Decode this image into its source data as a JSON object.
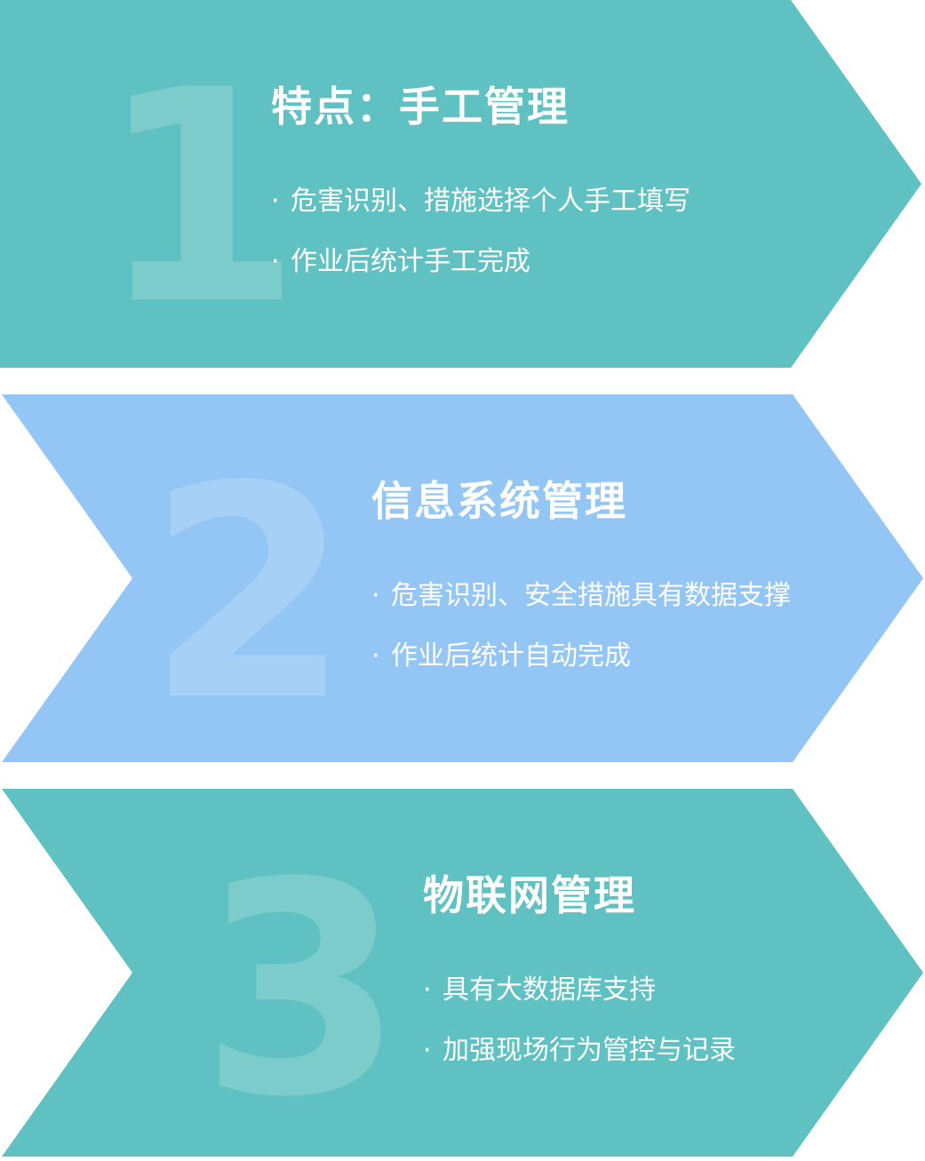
{
  "colors": {
    "teal": "#5fc1c1",
    "blue": "#93c6f4",
    "text": "#ffffff"
  },
  "stages": [
    {
      "number": "1",
      "title": "特点：手工管理",
      "bullets": [
        "危害识别、措施选择个人手工填写",
        "作业后统计手工完成"
      ]
    },
    {
      "number": "2",
      "title": "信息系统管理",
      "bullets": [
        "危害识别、安全措施具有数据支撑",
        "作业后统计自动完成"
      ]
    },
    {
      "number": "3",
      "title": "物联网管理",
      "bullets": [
        "具有大数据库支持",
        "加强现场行为管控与记录"
      ]
    }
  ]
}
